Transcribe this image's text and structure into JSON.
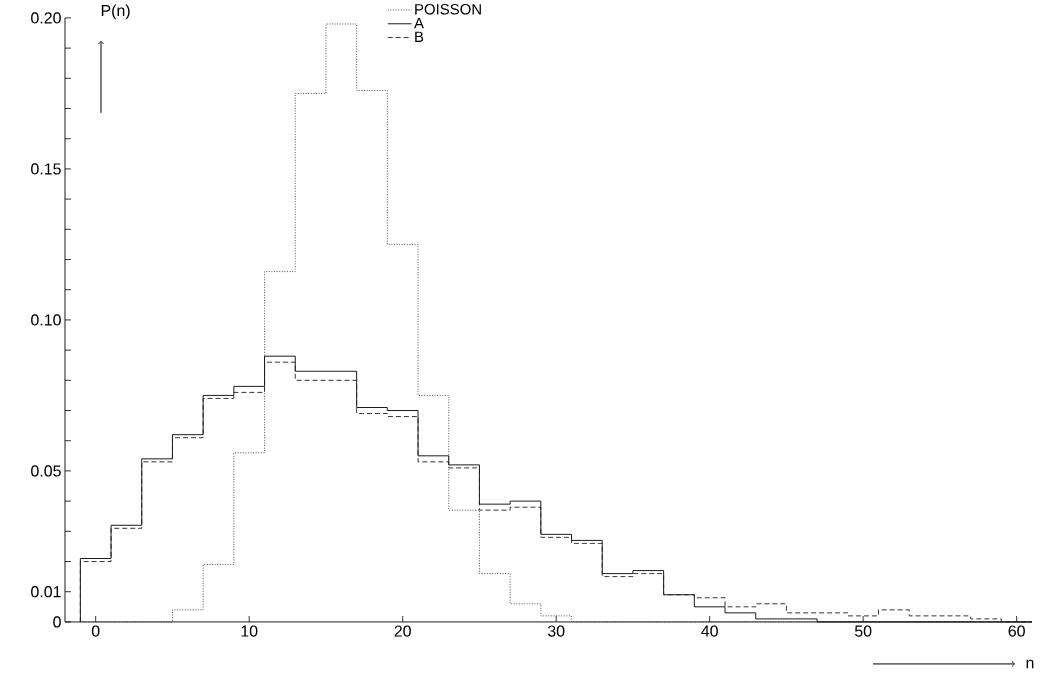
{
  "chart_data": {
    "type": "histogram",
    "xlabel": "n",
    "ylabel": "P(n)",
    "bins": [
      -1,
      1,
      3,
      5,
      7,
      9,
      11,
      13,
      15,
      17,
      19,
      21,
      23,
      25,
      27,
      29,
      31,
      33,
      35,
      37,
      39,
      41,
      43,
      45,
      47,
      49,
      51,
      53,
      55,
      57,
      59,
      61
    ],
    "series": [
      {
        "name": "POISSON",
        "color": "#404040",
        "line_style": "dotted",
        "values": [
          0,
          0,
          0,
          0.004,
          0.019,
          0.056,
          0.116,
          0.175,
          0.198,
          0.176,
          0.125,
          0.075,
          0.037,
          0.016,
          0.006,
          0.002,
          0,
          0,
          0,
          0,
          0,
          0,
          0,
          0,
          0,
          0,
          0,
          0,
          0,
          0,
          0
        ]
      },
      {
        "name": "A",
        "color": "#000000",
        "line_style": "solid",
        "values": [
          0.021,
          0.032,
          0.054,
          0.062,
          0.075,
          0.078,
          0.088,
          0.083,
          0.083,
          0.071,
          0.07,
          0.055,
          0.052,
          0.039,
          0.04,
          0.029,
          0.027,
          0.016,
          0.017,
          0.009,
          0.005,
          0.003,
          0.001,
          0.001,
          0,
          0,
          0,
          0,
          0,
          0,
          0
        ]
      },
      {
        "name": "B",
        "color": "#202020",
        "line_style": "dashed",
        "values": [
          0.02,
          0.031,
          0.053,
          0.061,
          0.074,
          0.076,
          0.086,
          0.08,
          0.08,
          0.069,
          0.068,
          0.053,
          0.051,
          0.037,
          0.038,
          0.028,
          0.026,
          0.015,
          0.016,
          0.009,
          0.008,
          0.005,
          0.006,
          0.003,
          0.003,
          0.002,
          0.004,
          0.002,
          0.002,
          0.001,
          0
        ]
      }
    ],
    "xlim": [
      -2,
      61
    ],
    "ylim": [
      0,
      0.2
    ],
    "xticks": [
      0,
      10,
      20,
      30,
      40,
      50,
      60
    ],
    "yticks": [
      0,
      0.01,
      {
        "value": 0.02,
        "label": null
      },
      {
        "value": 0.03,
        "label": null
      },
      {
        "value": 0.04,
        "label": null
      },
      0.05,
      {
        "value": 0.06,
        "label": null
      },
      {
        "value": 0.07,
        "label": null
      },
      {
        "value": 0.08,
        "label": null
      },
      {
        "value": 0.09,
        "label": null
      },
      {
        "value": 0.1,
        "label": "0.10"
      },
      {
        "value": 0.11,
        "label": null
      },
      {
        "value": 0.12,
        "label": null
      },
      {
        "value": 0.13,
        "label": null
      },
      {
        "value": 0.14,
        "label": null
      },
      0.15,
      {
        "value": 0.16,
        "label": null
      },
      {
        "value": 0.17,
        "label": null
      },
      {
        "value": 0.18,
        "label": null
      },
      {
        "value": 0.19,
        "label": null
      },
      {
        "value": 0.2,
        "label": "0.20"
      }
    ],
    "legend": "top",
    "grid": false
  }
}
